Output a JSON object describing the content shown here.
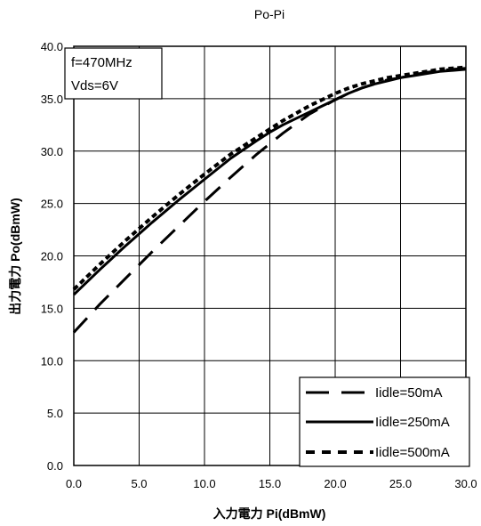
{
  "chart_data": {
    "type": "line",
    "title": "Po-Pi",
    "xlabel": "入力電力 Pi(dBmW)",
    "ylabel": "出力電力 Po(dBmW)",
    "xlim": [
      0,
      30
    ],
    "ylim": [
      0,
      40
    ],
    "x_ticks": [
      "0.0",
      "5.0",
      "10.0",
      "15.0",
      "20.0",
      "25.0",
      "30.0"
    ],
    "y_ticks": [
      "0.0",
      "5.0",
      "10.0",
      "15.0",
      "20.0",
      "25.0",
      "30.0",
      "35.0",
      "40.0"
    ],
    "grid": true,
    "legend_position": "bottom-right",
    "annotation": [
      "f=470MHz",
      "Vds=6V"
    ],
    "series": [
      {
        "name": "Iidle=50mA",
        "style": "long-dash",
        "x": [
          0,
          2,
          4,
          6,
          8,
          10,
          12,
          14,
          15,
          16,
          17,
          18,
          19,
          20,
          21,
          22,
          23,
          24,
          25,
          26,
          27,
          28,
          29,
          30
        ],
        "y": [
          12.7,
          15.4,
          17.9,
          20.4,
          22.8,
          25.2,
          27.5,
          29.7,
          30.7,
          31.7,
          32.6,
          33.5,
          34.2,
          34.9,
          35.5,
          36.0,
          36.4,
          36.8,
          37.0,
          37.3,
          37.5,
          37.7,
          37.8,
          37.9
        ]
      },
      {
        "name": "Iidle=250mA",
        "style": "solid",
        "x": [
          0,
          2,
          4,
          6,
          8,
          10,
          12,
          14,
          15,
          16,
          17,
          18,
          19,
          20,
          21,
          22,
          23,
          24,
          25,
          26,
          27,
          28,
          29,
          30
        ],
        "y": [
          16.3,
          18.7,
          21.0,
          23.2,
          25.3,
          27.3,
          29.3,
          31.0,
          31.8,
          32.5,
          33.1,
          33.7,
          34.3,
          34.9,
          35.5,
          36.0,
          36.4,
          36.7,
          37.0,
          37.2,
          37.4,
          37.6,
          37.7,
          37.8
        ]
      },
      {
        "name": "Iidle=500mA",
        "style": "short-dash",
        "x": [
          0,
          2,
          4,
          6,
          8,
          10,
          12,
          14,
          15,
          16,
          17,
          18,
          19,
          20,
          21,
          22,
          23,
          24,
          25,
          26,
          27,
          28,
          29,
          30
        ],
        "y": [
          16.8,
          19.2,
          21.5,
          23.7,
          25.8,
          27.8,
          29.7,
          31.3,
          32.1,
          32.9,
          33.6,
          34.3,
          34.9,
          35.5,
          36.0,
          36.4,
          36.7,
          37.0,
          37.2,
          37.4,
          37.6,
          37.8,
          37.9,
          38.0
        ]
      }
    ]
  }
}
